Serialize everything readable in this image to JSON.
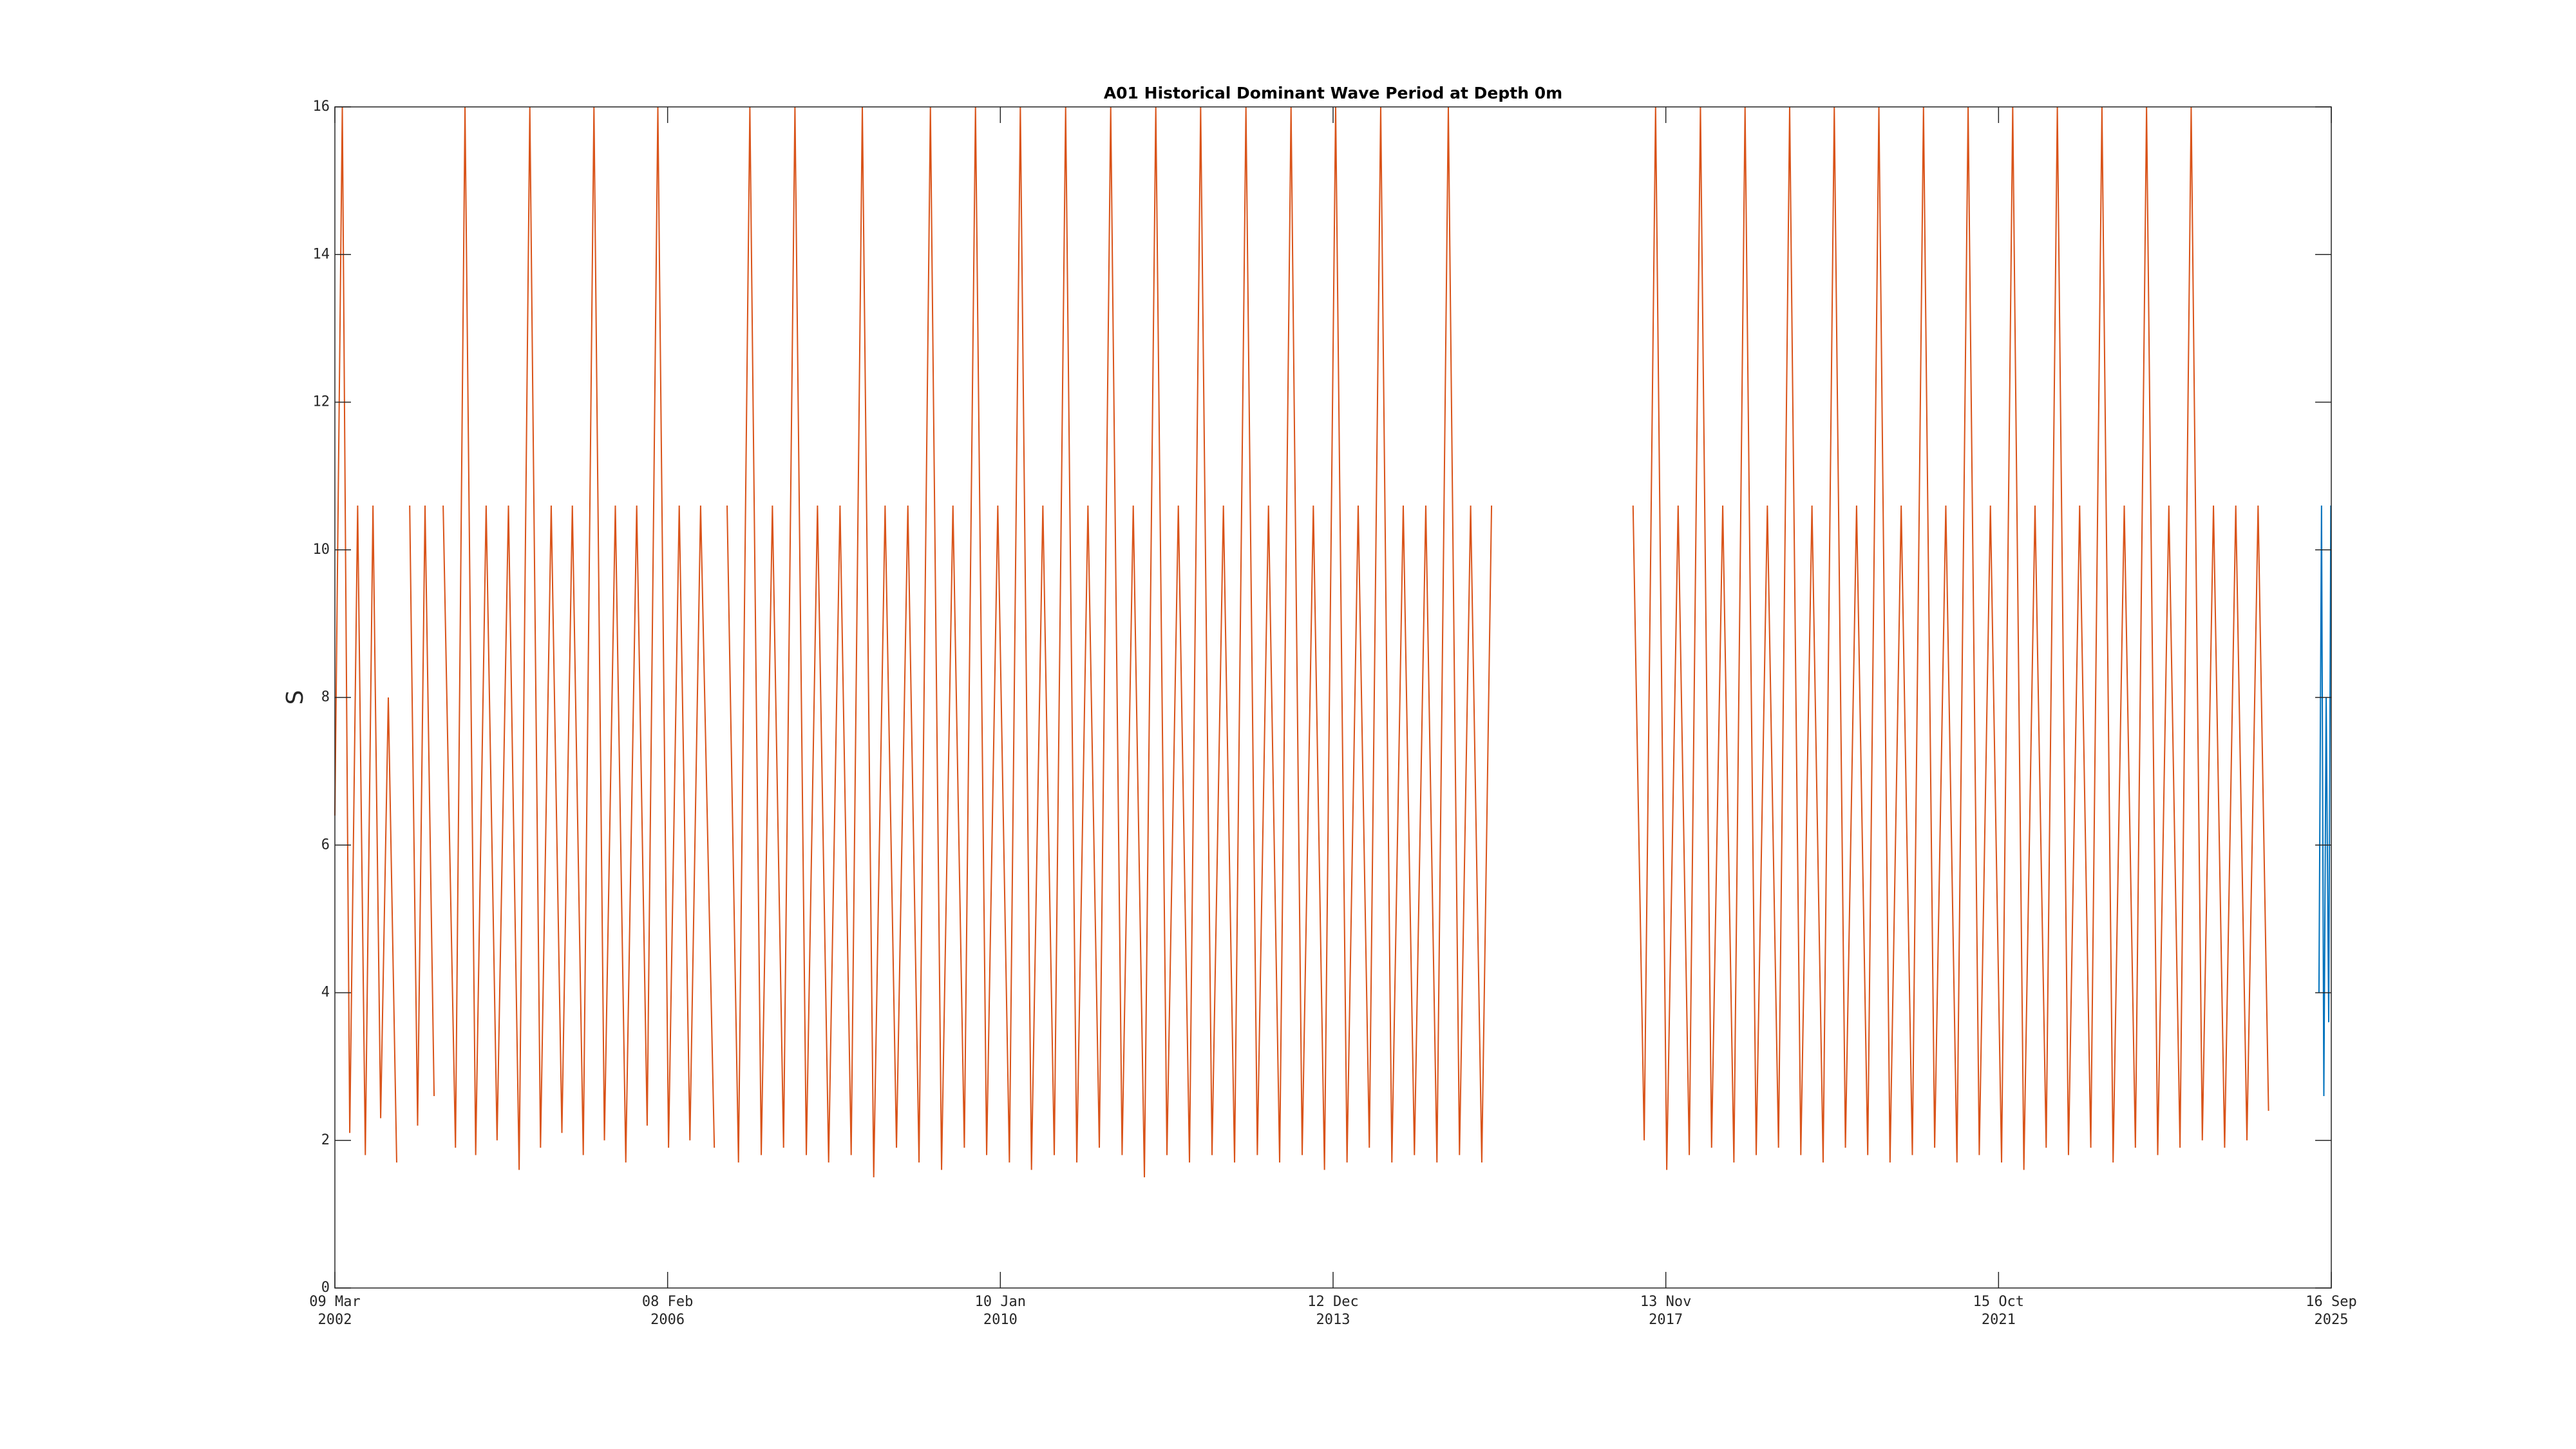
{
  "chart_data": {
    "type": "line",
    "title": "A01 Historical Dominant Wave Period at Depth 0m",
    "y_label": "S",
    "xlim": [
      "2002-03-09",
      "2025-09-16"
    ],
    "xticks": [
      {
        "value": "2002-03-09",
        "label": "09 Mar 2002"
      },
      {
        "value": "2006-02-08",
        "label": "08 Feb 2006"
      },
      {
        "value": "2010-01-10",
        "label": "10 Jan 2010"
      },
      {
        "value": "2013-12-12",
        "label": "12 Dec 2013"
      },
      {
        "value": "2017-11-13",
        "label": "13 Nov 2017"
      },
      {
        "value": "2021-10-15",
        "label": "15 Oct 2021"
      },
      {
        "value": "2025-09-16",
        "label": "16 Sep 2025"
      }
    ],
    "ylim": [
      0,
      16
    ],
    "yticks": [
      0,
      2,
      4,
      6,
      8,
      10,
      12,
      14,
      16
    ],
    "grid": false,
    "series": [
      {
        "color": "#D95319",
        "x": [
          "2002-03-09",
          "2002-04-10",
          "2002-05-12",
          "2002-06-15",
          "2002-07-18",
          "2002-08-20",
          "2002-09-22",
          "2002-10-25",
          "2002-11-30",
          "2003-01-01",
          "2003-01-25",
          "2003-02-28",
          "2003-04-01",
          "2003-05-10",
          "2003-05-30",
          "2003-06-18",
          "2003-08-10",
          "2003-09-20",
          "2003-11-05",
          "2003-12-20",
          "2004-02-05",
          "2004-03-25",
          "2004-05-10",
          "2004-06-25",
          "2004-08-10",
          "2004-09-25",
          "2004-11-10",
          "2004-12-25",
          "2005-02-10",
          "2005-03-28",
          "2005-05-12",
          "2005-06-28",
          "2005-08-12",
          "2005-09-28",
          "2005-11-12",
          "2005-12-28",
          "2006-02-12",
          "2006-03-30",
          "2006-05-15",
          "2006-06-30",
          "2006-08-28",
          "2006-09-15",
          "2006-10-22",
          "2006-12-10",
          "2007-01-28",
          "2007-03-18",
          "2007-05-05",
          "2007-06-22",
          "2007-08-10",
          "2007-09-28",
          "2007-11-15",
          "2008-01-02",
          "2008-02-20",
          "2008-04-08",
          "2008-05-26",
          "2008-07-14",
          "2008-09-01",
          "2008-10-20",
          "2008-12-08",
          "2009-01-25",
          "2009-03-15",
          "2009-05-02",
          "2009-06-20",
          "2009-08-08",
          "2009-09-25",
          "2009-11-12",
          "2009-12-30",
          "2010-02-18",
          "2010-04-06",
          "2010-05-24",
          "2010-07-12",
          "2010-08-30",
          "2010-10-18",
          "2010-12-05",
          "2011-01-22",
          "2011-03-12",
          "2011-04-30",
          "2011-06-18",
          "2011-08-05",
          "2011-09-22",
          "2011-11-10",
          "2011-12-28",
          "2012-02-15",
          "2012-04-03",
          "2012-05-21",
          "2012-07-09",
          "2012-08-27",
          "2012-10-14",
          "2012-12-02",
          "2013-01-20",
          "2013-03-09",
          "2013-04-26",
          "2013-06-14",
          "2013-08-01",
          "2013-09-18",
          "2013-11-05",
          "2013-12-23",
          "2014-02-10",
          "2014-03-30",
          "2014-05-17",
          "2014-07-05",
          "2014-08-22",
          "2014-10-10",
          "2014-11-27",
          "2015-01-15",
          "2015-03-04",
          "2015-04-22",
          "2015-06-09",
          "2015-07-27",
          "2015-09-13",
          "2015-10-25",
          "2016-06-01",
          "2017-06-25",
          "2017-08-12",
          "2017-09-30",
          "2017-11-17",
          "2018-01-05",
          "2018-02-22",
          "2018-04-11",
          "2018-05-29",
          "2018-07-16",
          "2018-09-02",
          "2018-10-20",
          "2018-12-07",
          "2019-01-24",
          "2019-03-13",
          "2019-04-30",
          "2019-06-17",
          "2019-08-04",
          "2019-09-21",
          "2019-11-08",
          "2019-12-26",
          "2020-02-12",
          "2020-03-31",
          "2020-05-18",
          "2020-07-05",
          "2020-08-22",
          "2020-10-09",
          "2020-11-26",
          "2021-01-13",
          "2021-03-02",
          "2021-04-19",
          "2021-06-06",
          "2021-07-24",
          "2021-09-10",
          "2021-10-28",
          "2021-12-15",
          "2022-02-01",
          "2022-03-21",
          "2022-05-08",
          "2022-06-25",
          "2022-08-12",
          "2022-09-29",
          "2022-11-16",
          "2023-01-03",
          "2023-02-20",
          "2023-04-09",
          "2023-05-27",
          "2023-07-14",
          "2023-08-31",
          "2023-10-18",
          "2023-12-05",
          "2024-01-22",
          "2024-03-10",
          "2024-04-27",
          "2024-06-14",
          "2024-08-01",
          "2024-09-18",
          "2024-11-05",
          "2024-12-20"
        ],
        "values": [
          6.4,
          16,
          2.1,
          10.6,
          1.8,
          10.6,
          2.3,
          8,
          1.7,
          null,
          10.6,
          2.2,
          10.6,
          2.6,
          null,
          10.6,
          1.9,
          16,
          1.8,
          10.6,
          2.0,
          10.6,
          1.6,
          16,
          1.9,
          10.6,
          2.1,
          10.6,
          1.8,
          16,
          2.0,
          10.6,
          1.7,
          10.6,
          2.2,
          16,
          1.9,
          10.6,
          2.0,
          10.6,
          1.9,
          null,
          10.6,
          1.7,
          16,
          1.8,
          10.6,
          1.9,
          16,
          1.8,
          10.6,
          1.7,
          10.6,
          1.8,
          16,
          1.5,
          10.6,
          1.9,
          10.6,
          1.7,
          16,
          1.6,
          10.6,
          1.9,
          16,
          1.8,
          10.6,
          1.7,
          16,
          1.6,
          10.6,
          1.8,
          16,
          1.7,
          10.6,
          1.9,
          16,
          1.8,
          10.6,
          1.5,
          16,
          1.8,
          10.6,
          1.7,
          16,
          1.8,
          10.6,
          1.7,
          16,
          1.8,
          10.6,
          1.7,
          16,
          1.8,
          10.6,
          1.6,
          16,
          1.7,
          10.6,
          1.9,
          16,
          1.7,
          10.6,
          1.8,
          10.6,
          1.7,
          16,
          1.8,
          10.6,
          1.7,
          10.6,
          null,
          10.6,
          2.0,
          16,
          1.6,
          10.6,
          1.8,
          16,
          1.9,
          10.6,
          1.7,
          16,
          1.8,
          10.6,
          1.9,
          16,
          1.8,
          10.6,
          1.7,
          16,
          1.9,
          10.6,
          1.8,
          16,
          1.7,
          10.6,
          1.8,
          16,
          1.9,
          10.6,
          1.7,
          16,
          1.8,
          10.6,
          1.7,
          16,
          1.6,
          10.6,
          1.9,
          16,
          1.8,
          10.6,
          1.9,
          16,
          1.7,
          10.6,
          1.9,
          16,
          1.8,
          10.6,
          1.9,
          16,
          2.0,
          10.6,
          1.9,
          10.6,
          2.0,
          10.6,
          2.4
        ]
      },
      {
        "color": "#0072BD",
        "x": [
          "2025-07-25",
          "2025-08-05",
          "2025-08-15",
          "2025-08-25",
          "2025-09-05",
          "2025-09-14"
        ],
        "values": [
          4.0,
          10.6,
          2.6,
          8.0,
          3.6,
          10.6
        ]
      }
    ]
  }
}
